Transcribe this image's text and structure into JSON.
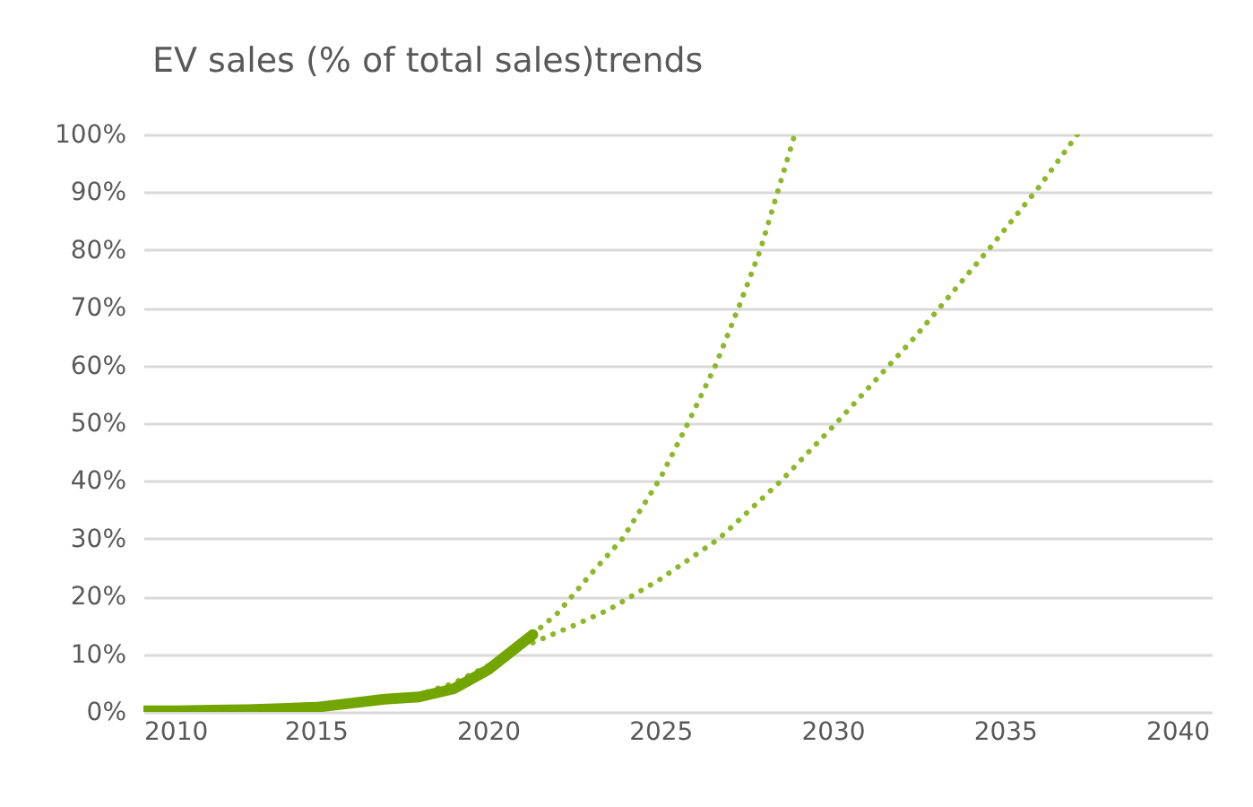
{
  "chart_data": {
    "type": "line",
    "title": "EV sales (% of total sales)trends",
    "xlim": [
      2010,
      2041
    ],
    "xticks": [
      2010,
      2015,
      2020,
      2025,
      2030,
      2035,
      2040
    ],
    "ylim": [
      0,
      100
    ],
    "yticks": [
      {
        "value": 0,
        "label": "0%"
      },
      {
        "value": 10,
        "label": "10%"
      },
      {
        "value": 20,
        "label": "20%"
      },
      {
        "value": 30,
        "label": "30%"
      },
      {
        "value": 40,
        "label": "40%"
      },
      {
        "value": 50,
        "label": "50%"
      },
      {
        "value": 60,
        "label": "60%"
      },
      {
        "value": 70,
        "label": "70%"
      },
      {
        "value": 80,
        "label": "80%"
      },
      {
        "value": 90,
        "label": "90%"
      },
      {
        "value": 100,
        "label": "100%"
      }
    ],
    "grid": "y",
    "marker": "none",
    "series": [
      {
        "color": "#8cb82a",
        "line_style": "dotted",
        "x": [
          2017,
          2018,
          2019,
          2020,
          2021,
          2022,
          2023,
          2023.9,
          2025,
          2025.8,
          2026.6,
          2027.3,
          2027.9,
          2028.4,
          2028.9
        ],
        "values": [
          2,
          3,
          5,
          8,
          12,
          17,
          24,
          30,
          40.5,
          50,
          60,
          70.5,
          80,
          90,
          100
        ]
      },
      {
        "color": "#8cb82a",
        "line_style": "dotted",
        "x": [
          2021.3,
          2022.5,
          2023.5,
          2025,
          2026.7,
          2028.5,
          2030.1,
          2032.4,
          2034.65,
          2036,
          2037.1
        ],
        "values": [
          12,
          15,
          17.7,
          23,
          30,
          40,
          50,
          65,
          81,
          91,
          100
        ]
      },
      {
        "color": "#72a500",
        "line_style": "solid",
        "x": [
          2010,
          2011,
          2012,
          2013,
          2014,
          2015,
          2016,
          2017,
          2018,
          2019,
          2020,
          2021.3
        ],
        "values": [
          0.2,
          0.2,
          0.3,
          0.4,
          0.6,
          0.8,
          1.5,
          2.2,
          2.6,
          4,
          7.3,
          13.4
        ]
      }
    ]
  }
}
